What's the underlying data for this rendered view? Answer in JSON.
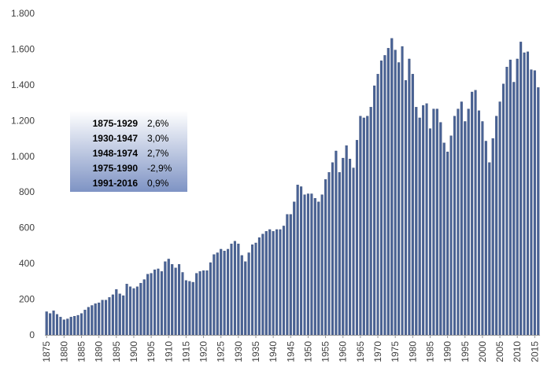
{
  "colors": {
    "bar": "#4a6395",
    "bar_edge": "#2b3f6b",
    "axis": "#9a9a9a",
    "text": "#404040",
    "box_top": "#ffffff",
    "box_bottom": "#7e93c4"
  },
  "legend_box": {
    "rows": [
      {
        "period": "1875-1929",
        "rate": "2,6%"
      },
      {
        "period": "1930-1947",
        "rate": "3,0%"
      },
      {
        "period": "1948-1974",
        "rate": "2,7%"
      },
      {
        "period": "1975-1990",
        "rate": "-2,9%"
      },
      {
        "period": "1991-2016",
        "rate": "0,9%"
      }
    ]
  },
  "chart_data": {
    "type": "bar",
    "title": "",
    "xlabel": "",
    "ylabel": "",
    "ylim": [
      0,
      1800
    ],
    "yticks": [
      0,
      200,
      400,
      600,
      800,
      1000,
      1200,
      1400,
      1600,
      1800
    ],
    "ytick_labels": [
      "0",
      "200",
      "400",
      "600",
      "800",
      "1.000",
      "1.200",
      "1.400",
      "1.600",
      "1.800"
    ],
    "xtick_labels": [
      "1875",
      "1880",
      "1885",
      "1890",
      "1895",
      "1900",
      "1905",
      "1910",
      "1915",
      "1920",
      "1925",
      "1930",
      "1935",
      "1940",
      "1945",
      "1950",
      "1955",
      "1960",
      "1965",
      "1970",
      "1975",
      "1980",
      "1985",
      "1990",
      "1995",
      "2000",
      "2005",
      "2010",
      "2015"
    ],
    "categories": [
      1875,
      1876,
      1877,
      1878,
      1879,
      1880,
      1881,
      1882,
      1883,
      1884,
      1885,
      1886,
      1887,
      1888,
      1889,
      1890,
      1891,
      1892,
      1893,
      1894,
      1895,
      1896,
      1897,
      1898,
      1899,
      1900,
      1901,
      1902,
      1903,
      1904,
      1905,
      1906,
      1907,
      1908,
      1909,
      1910,
      1911,
      1912,
      1913,
      1914,
      1915,
      1916,
      1917,
      1918,
      1919,
      1920,
      1921,
      1922,
      1923,
      1924,
      1925,
      1926,
      1927,
      1928,
      1929,
      1930,
      1931,
      1932,
      1933,
      1934,
      1935,
      1936,
      1937,
      1938,
      1939,
      1940,
      1941,
      1942,
      1943,
      1944,
      1945,
      1946,
      1947,
      1948,
      1949,
      1950,
      1951,
      1952,
      1953,
      1954,
      1955,
      1956,
      1957,
      1958,
      1959,
      1960,
      1961,
      1962,
      1963,
      1964,
      1965,
      1966,
      1967,
      1968,
      1969,
      1970,
      1971,
      1972,
      1973,
      1974,
      1975,
      1976,
      1977,
      1978,
      1979,
      1980,
      1981,
      1982,
      1983,
      1984,
      1985,
      1986,
      1987,
      1988,
      1989,
      1990,
      1991,
      1992,
      1993,
      1994,
      1995,
      1996,
      1997,
      1998,
      1999,
      2000,
      2001,
      2002,
      2003,
      2004,
      2005,
      2006,
      2007,
      2008,
      2009,
      2010,
      2011,
      2012,
      2013,
      2014,
      2015,
      2016
    ],
    "values": [
      130,
      120,
      135,
      115,
      100,
      85,
      90,
      100,
      105,
      110,
      120,
      140,
      155,
      165,
      175,
      180,
      195,
      195,
      210,
      225,
      255,
      230,
      220,
      285,
      270,
      260,
      270,
      290,
      310,
      340,
      345,
      365,
      370,
      355,
      410,
      425,
      395,
      375,
      395,
      350,
      305,
      300,
      295,
      345,
      355,
      360,
      360,
      405,
      450,
      460,
      480,
      470,
      480,
      510,
      525,
      510,
      445,
      410,
      460,
      505,
      515,
      545,
      565,
      580,
      590,
      580,
      590,
      590,
      610,
      675,
      675,
      745,
      840,
      830,
      785,
      790,
      790,
      765,
      745,
      785,
      870,
      910,
      965,
      1030,
      910,
      990,
      1060,
      985,
      935,
      1090,
      1225,
      1215,
      1225,
      1275,
      1395,
      1460,
      1535,
      1565,
      1605,
      1660,
      1595,
      1525,
      1615,
      1425,
      1545,
      1460,
      1275,
      1215,
      1285,
      1295,
      1155,
      1265,
      1265,
      1190,
      1075,
      1025,
      1115,
      1225,
      1265,
      1305,
      1195,
      1265,
      1360,
      1370,
      1255,
      1195,
      1085,
      965,
      1100,
      1225,
      1305,
      1405,
      1500,
      1540,
      1415,
      1545,
      1640,
      1580,
      1585,
      1485,
      1480,
      1385
    ]
  }
}
